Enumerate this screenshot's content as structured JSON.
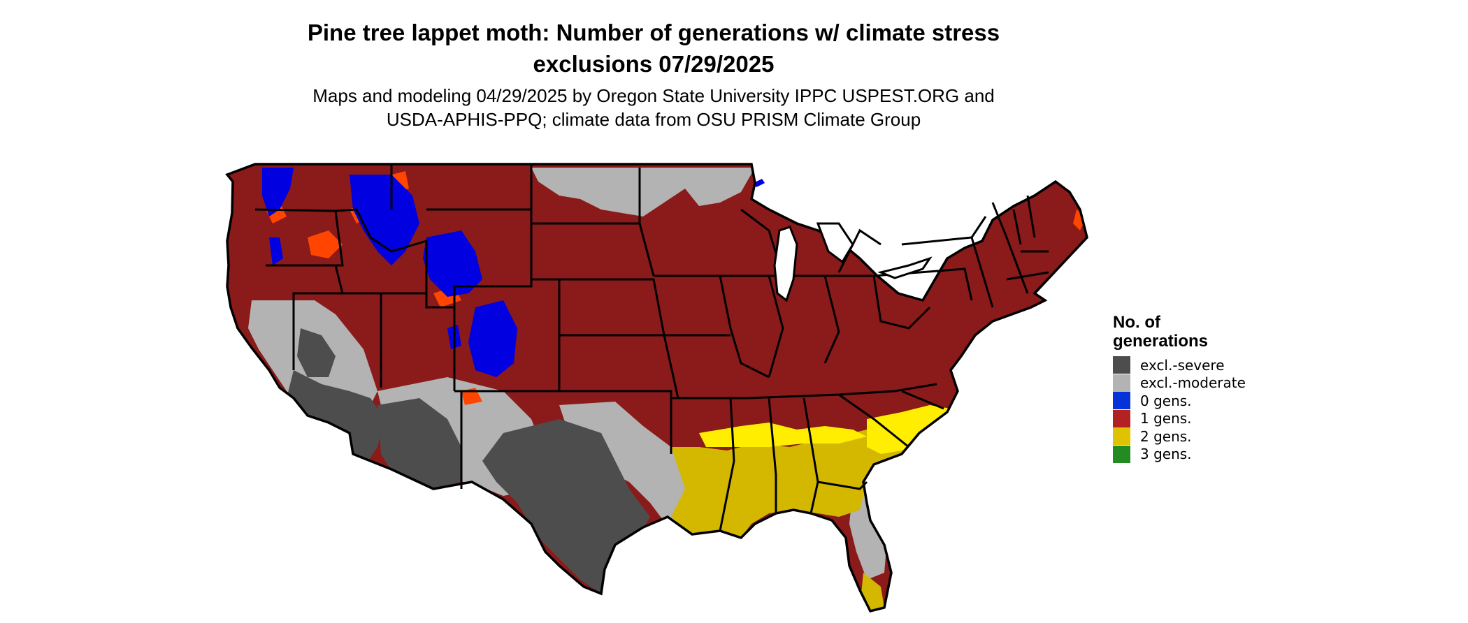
{
  "title": {
    "line1": "Pine tree lappet moth: Number of generations w/ climate stress",
    "line2": "exclusions 07/29/2025"
  },
  "subtitle": {
    "line1": "Maps and modeling 04/29/2025 by Oregon State University IPPC USPEST.ORG and",
    "line2": "USDA-APHIS-PPQ; climate data from OSU PRISM Climate Group"
  },
  "legend": {
    "title_line1": "No. of",
    "title_line2": "generations",
    "items": [
      {
        "label": "excl.-severe",
        "color": "#4d4d4d"
      },
      {
        "label": "excl.-moderate",
        "color": "#b3b3b3"
      },
      {
        "label": "0 gens.",
        "color": "#0433d8"
      },
      {
        "label": "1 gens.",
        "color": "#b22222"
      },
      {
        "label": "2 gens.",
        "color": "#e0c300"
      },
      {
        "label": "3 gens.",
        "color": "#228b22"
      }
    ]
  },
  "map_colors": {
    "land_dark_red": "#8b1a1a",
    "orange_patches": "#ff4500",
    "zero_gens_blue": "#0000e0",
    "severe_gray": "#4d4d4d",
    "moderate_gray": "#b3b3b3",
    "two_gens_yellow": "#d4b800",
    "bright_yellow": "#ffee00",
    "border": "#000000"
  }
}
